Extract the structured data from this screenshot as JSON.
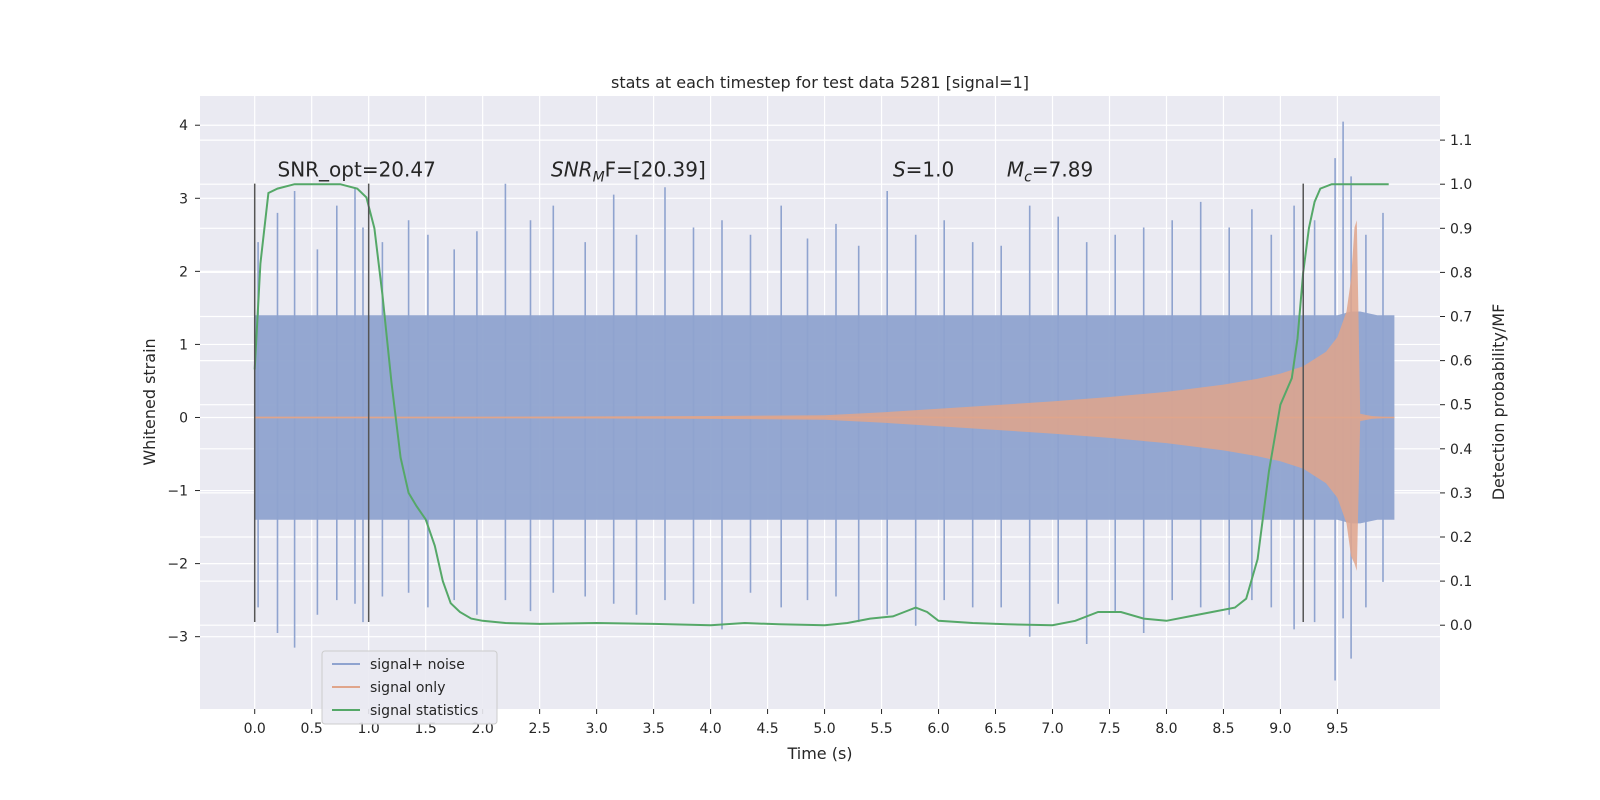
{
  "chart_data": {
    "type": "line",
    "title": "stats at each timestep for test data 5281 [signal=1]",
    "xlabel": "Time (s)",
    "ylabel": "Whitened strain",
    "y2label": "Detection probability/MF",
    "xlim": [
      -0.48,
      10.4
    ],
    "ylim": [
      -3.99,
      4.4
    ],
    "y2lim": [
      -0.19,
      1.2
    ],
    "xticks": [
      0.0,
      0.5,
      1.0,
      1.5,
      2.0,
      2.5,
      3.0,
      3.5,
      4.0,
      4.5,
      5.0,
      5.5,
      6.0,
      6.5,
      7.0,
      7.5,
      8.0,
      8.5,
      9.0,
      9.5
    ],
    "xtick_labels": [
      "0.0",
      "0.5",
      "1.0",
      "1.5",
      "2.0",
      "2.5",
      "3.0",
      "3.5",
      "4.0",
      "4.5",
      "5.0",
      "5.5",
      "6.0",
      "6.5",
      "7.0",
      "7.5",
      "8.0",
      "8.5",
      "9.0",
      "9.5"
    ],
    "yticks": [
      -3,
      -2,
      -1,
      0,
      1,
      2,
      3,
      4
    ],
    "ytick_labels": [
      "−3",
      "−2",
      "−1",
      "0",
      "1",
      "2",
      "3",
      "4"
    ],
    "y2ticks": [
      0.0,
      0.1,
      0.2,
      0.3,
      0.4,
      0.5,
      0.6,
      0.7,
      0.8,
      0.9,
      1.0,
      1.1
    ],
    "y2tick_labels": [
      "0.0",
      "0.1",
      "0.2",
      "0.3",
      "0.4",
      "0.5",
      "0.6",
      "0.7",
      "0.8",
      "0.9",
      "1.0",
      "1.1"
    ],
    "grid": true,
    "legend_position": "lower-left",
    "colors": {
      "plot_bg": "#eaeaf2",
      "grid": "#ffffff",
      "signal_noise": "#8fa3cf",
      "signal_only": "#e0a58b",
      "signal_stats": "#55a868",
      "vlines": "#555555"
    },
    "series": [
      {
        "name": "signal+ noise",
        "axis": "left",
        "envelope": {
          "x": [
            0.0,
            0.5,
            1.0,
            1.5,
            2.0,
            2.5,
            3.0,
            3.5,
            4.0,
            4.5,
            5.0,
            5.5,
            6.0,
            6.5,
            7.0,
            7.5,
            8.0,
            8.5,
            9.0,
            9.3,
            9.5,
            9.62,
            9.7,
            9.85,
            10.0
          ],
          "upper": [
            1.4,
            1.4,
            1.4,
            1.4,
            1.4,
            1.4,
            1.4,
            1.4,
            1.4,
            1.4,
            1.4,
            1.4,
            1.4,
            1.4,
            1.4,
            1.4,
            1.4,
            1.4,
            1.4,
            1.4,
            1.4,
            1.45,
            1.45,
            1.4,
            1.4
          ],
          "lower": [
            -1.4,
            -1.4,
            -1.4,
            -1.4,
            -1.4,
            -1.4,
            -1.4,
            -1.4,
            -1.4,
            -1.4,
            -1.4,
            -1.4,
            -1.4,
            -1.4,
            -1.4,
            -1.4,
            -1.4,
            -1.4,
            -1.4,
            -1.4,
            -1.4,
            -1.45,
            -1.45,
            -1.4,
            -1.4
          ]
        },
        "peaks": {
          "x": [
            0.03,
            0.2,
            0.35,
            0.55,
            0.72,
            0.88,
            0.95,
            1.12,
            1.35,
            1.52,
            1.75,
            1.95,
            2.2,
            2.42,
            2.62,
            2.9,
            3.15,
            3.35,
            3.6,
            3.85,
            4.1,
            4.35,
            4.62,
            4.85,
            5.1,
            5.3,
            5.55,
            5.8,
            6.05,
            6.3,
            6.55,
            6.8,
            7.05,
            7.3,
            7.55,
            7.8,
            8.05,
            8.3,
            8.55,
            8.75,
            8.92,
            9.12,
            9.3,
            9.48,
            9.55,
            9.62,
            9.75,
            9.9
          ],
          "up": [
            2.4,
            2.8,
            3.1,
            2.3,
            2.9,
            3.15,
            2.6,
            2.4,
            2.7,
            2.5,
            2.3,
            2.55,
            3.2,
            2.7,
            2.9,
            2.4,
            3.05,
            2.5,
            3.15,
            2.6,
            2.7,
            2.5,
            2.9,
            2.45,
            2.65,
            2.35,
            3.1,
            2.5,
            2.7,
            2.4,
            2.35,
            2.9,
            2.75,
            2.4,
            2.5,
            2.6,
            2.7,
            2.95,
            2.6,
            2.85,
            2.5,
            2.9,
            2.7,
            3.55,
            4.05,
            3.3,
            2.5,
            2.8
          ],
          "down": [
            -2.6,
            -2.95,
            -3.15,
            -2.7,
            -2.5,
            -2.55,
            -2.8,
            -2.45,
            -2.4,
            -2.6,
            -2.5,
            -2.7,
            -2.5,
            -2.65,
            -2.4,
            -2.45,
            -2.55,
            -2.7,
            -2.5,
            -2.55,
            -2.9,
            -2.4,
            -2.6,
            -2.5,
            -2.45,
            -2.8,
            -2.7,
            -2.85,
            -2.5,
            -2.6,
            -2.6,
            -3.0,
            -2.55,
            -3.1,
            -2.65,
            -2.95,
            -2.5,
            -2.6,
            -2.7,
            -2.5,
            -2.6,
            -2.9,
            -2.8,
            -3.6,
            -2.75,
            -3.3,
            -2.6,
            -2.25
          ]
        }
      },
      {
        "name": "signal only",
        "axis": "left",
        "envelope": {
          "x": [
            0.0,
            2.0,
            4.0,
            5.0,
            5.5,
            6.0,
            6.5,
            7.0,
            7.5,
            8.0,
            8.5,
            8.8,
            9.0,
            9.2,
            9.4,
            9.5,
            9.58,
            9.62,
            9.65,
            9.67,
            9.7,
            9.8,
            10.0
          ],
          "upper": [
            0.01,
            0.01,
            0.02,
            0.03,
            0.07,
            0.12,
            0.17,
            0.22,
            0.28,
            0.35,
            0.45,
            0.53,
            0.6,
            0.7,
            0.9,
            1.1,
            1.45,
            1.9,
            2.6,
            2.7,
            0.05,
            0.02,
            0.0
          ],
          "lower": [
            -0.01,
            -0.01,
            -0.02,
            -0.03,
            -0.07,
            -0.12,
            -0.17,
            -0.22,
            -0.28,
            -0.35,
            -0.45,
            -0.53,
            -0.6,
            -0.7,
            -0.9,
            -1.1,
            -1.45,
            -1.9,
            -2.0,
            -2.1,
            -0.05,
            -0.02,
            0.0
          ]
        }
      },
      {
        "name": "signal statistics",
        "axis": "right",
        "x": [
          0.0,
          0.05,
          0.12,
          0.2,
          0.35,
          0.55,
          0.75,
          0.9,
          0.98,
          1.05,
          1.12,
          1.2,
          1.28,
          1.35,
          1.42,
          1.5,
          1.58,
          1.65,
          1.72,
          1.8,
          1.9,
          2.0,
          2.2,
          2.5,
          3.0,
          3.5,
          4.0,
          4.3,
          4.6,
          5.0,
          5.2,
          5.4,
          5.6,
          5.7,
          5.8,
          5.9,
          6.0,
          6.3,
          6.6,
          7.0,
          7.2,
          7.4,
          7.6,
          7.8,
          8.0,
          8.2,
          8.4,
          8.6,
          8.7,
          8.8,
          8.9,
          9.0,
          9.1,
          9.15,
          9.2,
          9.25,
          9.3,
          9.35,
          9.45,
          9.6,
          9.8,
          9.95
        ],
        "y": [
          0.58,
          0.82,
          0.98,
          0.99,
          1.0,
          1.0,
          1.0,
          0.99,
          0.97,
          0.9,
          0.75,
          0.55,
          0.38,
          0.3,
          0.27,
          0.24,
          0.18,
          0.1,
          0.05,
          0.03,
          0.015,
          0.01,
          0.005,
          0.003,
          0.005,
          0.003,
          0.0,
          0.005,
          0.002,
          0.0,
          0.005,
          0.015,
          0.02,
          0.03,
          0.04,
          0.03,
          0.01,
          0.005,
          0.002,
          0.0,
          0.01,
          0.03,
          0.03,
          0.015,
          0.01,
          0.02,
          0.03,
          0.04,
          0.06,
          0.15,
          0.35,
          0.5,
          0.56,
          0.65,
          0.8,
          0.9,
          0.96,
          0.99,
          1.0,
          1.0,
          1.0,
          1.0
        ]
      }
    ],
    "vlines": [
      {
        "x": 0.0,
        "y_from": -2.8,
        "y_to": 3.2
      },
      {
        "x": 1.0,
        "y_from": -2.8,
        "y_to": 3.2
      },
      {
        "x": 9.2,
        "y_from": -2.8,
        "y_to": 3.2
      }
    ],
    "annotations": [
      {
        "id": "snr-opt",
        "x": 0.2,
        "y": 3.3,
        "text": "SNR_opt=20.47"
      },
      {
        "id": "snr-mf",
        "x": 2.6,
        "y": 3.3,
        "main": "SNR",
        "sub": "M",
        "rest": "F=[20.39]"
      },
      {
        "id": "s-stat",
        "x": 5.6,
        "y": 3.3,
        "main": "S",
        "rest": "=1.0"
      },
      {
        "id": "chirp-mass",
        "x": 6.6,
        "y": 3.3,
        "main": "M",
        "sub": "c",
        "rest": "=7.89"
      }
    ]
  }
}
